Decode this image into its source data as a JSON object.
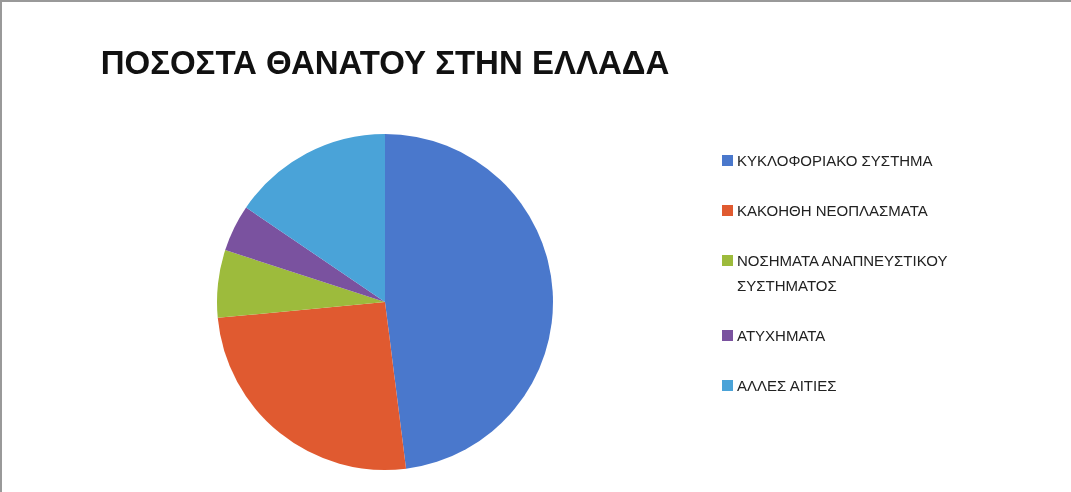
{
  "chart_data": {
    "type": "pie",
    "title": "ΠΟΣΟΣΤΑ ΘΑΝΑΤΟΥ ΣΤΗΝ ΕΛΛΑΔΑ",
    "categories": [
      "ΚΥΚΛΟΦΟΡΙΑΚΟ ΣΥΣΤΗΜΑ",
      "ΚΑΚΟΗΘΗ ΝΕΟΠΛΑΣΜΑΤΑ",
      "ΝΟΣΗΜΑΤΑ ΑΝΑΠΝΕΥΣΤΙΚΟΥ ΣΥΣΤΗΜΑΤΟΣ",
      "ΑΤΥΧΗΜΑΤΑ",
      "ΑΛΛΕΣ ΑΙΤΙΕΣ"
    ],
    "values": [
      48,
      25.5,
      6.5,
      4.5,
      15.5
    ],
    "colors": [
      "#4a78cc",
      "#e05a30",
      "#9dbb3c",
      "#7a529f",
      "#4aa3d8"
    ],
    "legend": "right"
  }
}
